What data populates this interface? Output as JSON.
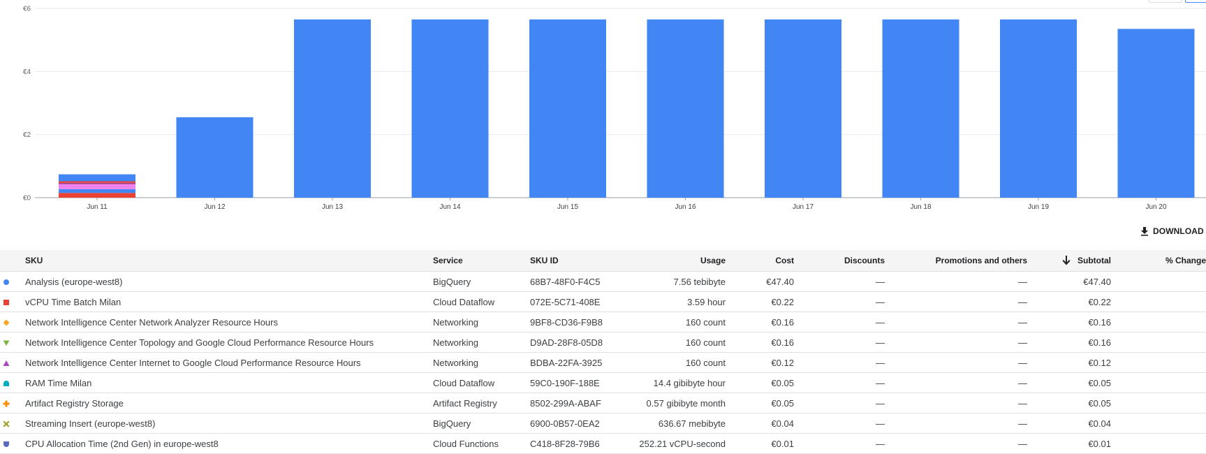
{
  "download_label": "DOWNLOAD",
  "chart_data": {
    "type": "bar",
    "stacked": true,
    "categories": [
      "Jun 11",
      "Jun 12",
      "Jun 13",
      "Jun 14",
      "Jun 15",
      "Jun 16",
      "Jun 17",
      "Jun 18",
      "Jun 19",
      "Jun 20"
    ],
    "y_ticks": [
      "€0",
      "€2",
      "€4",
      "€6"
    ],
    "ylim": [
      0,
      6
    ],
    "grid": true,
    "series": [
      {
        "color": "#ea4335",
        "values": [
          0.15,
          0,
          0,
          0,
          0,
          0,
          0,
          0,
          0,
          0
        ]
      },
      {
        "color": "#4285f4",
        "values": [
          0.12,
          0,
          0,
          0,
          0,
          0,
          0,
          0,
          0,
          0
        ]
      },
      {
        "color": "#ee82ee",
        "values": [
          0.16,
          0,
          0,
          0,
          0,
          0,
          0,
          0,
          0,
          0
        ]
      },
      {
        "color": "#9e3a8e",
        "values": [
          0.04,
          0,
          0,
          0,
          0,
          0,
          0,
          0,
          0,
          0
        ]
      },
      {
        "color": "#ea4335",
        "values": [
          0.05,
          0,
          0,
          0,
          0,
          0,
          0,
          0,
          0,
          0
        ]
      },
      {
        "color": "#4285f4",
        "values": [
          0.22,
          2.55,
          5.65,
          5.65,
          5.65,
          5.65,
          5.65,
          5.65,
          5.65,
          5.35
        ]
      }
    ]
  },
  "table": {
    "headers": {
      "sku": "SKU",
      "service": "Service",
      "sku_id": "SKU ID",
      "usage": "Usage",
      "cost": "Cost",
      "discounts": "Discounts",
      "promotions": "Promotions and others",
      "subtotal": "Subtotal",
      "change": "% Change"
    },
    "rows": [
      {
        "marker": "circle",
        "color": "#4285f4",
        "sku": "Analysis (europe-west8)",
        "service": "BigQuery",
        "sku_id": "68B7-48F0-F4C5",
        "usage": "7.56 tebibyte",
        "cost": "€47.40",
        "discounts": "—",
        "promotions": "—",
        "subtotal": "€47.40"
      },
      {
        "marker": "square",
        "color": "#ea4335",
        "sku": "vCPU Time Batch Milan",
        "service": "Cloud Dataflow",
        "sku_id": "072E-5C71-408E",
        "usage": "3.59 hour",
        "cost": "€0.22",
        "discounts": "—",
        "promotions": "—",
        "subtotal": "€0.22"
      },
      {
        "marker": "diamond",
        "color": "#f9a825",
        "sku": "Network Intelligence Center Network Analyzer Resource Hours",
        "service": "Networking",
        "sku_id": "9BF8-CD36-F9B8",
        "usage": "160 count",
        "cost": "€0.16",
        "discounts": "—",
        "promotions": "—",
        "subtotal": "€0.16"
      },
      {
        "marker": "triangle-down",
        "color": "#7cb342",
        "sku": "Network Intelligence Center Topology and Google Cloud Performance Resource Hours",
        "service": "Networking",
        "sku_id": "D9AD-28F8-05D8",
        "usage": "160 count",
        "cost": "€0.16",
        "discounts": "—",
        "promotions": "—",
        "subtotal": "€0.16"
      },
      {
        "marker": "triangle-up",
        "color": "#ab47bc",
        "sku": "Network Intelligence Center Internet to Google Cloud Performance Resource Hours",
        "service": "Networking",
        "sku_id": "BDBA-22FA-3925",
        "usage": "160 count",
        "cost": "€0.12",
        "discounts": "—",
        "promotions": "—",
        "subtotal": "€0.12"
      },
      {
        "marker": "dome",
        "color": "#00acc1",
        "sku": "RAM Time Milan",
        "service": "Cloud Dataflow",
        "sku_id": "59C0-190F-188E",
        "usage": "14.4 gibibyte hour",
        "cost": "€0.05",
        "discounts": "—",
        "promotions": "—",
        "subtotal": "€0.05"
      },
      {
        "marker": "plus",
        "color": "#fb8c00",
        "sku": "Artifact Registry Storage",
        "service": "Artifact Registry",
        "sku_id": "8502-299A-ABAF",
        "usage": "0.57 gibibyte month",
        "cost": "€0.05",
        "discounts": "—",
        "promotions": "—",
        "subtotal": "€0.05"
      },
      {
        "marker": "cross",
        "color": "#9e9d24",
        "sku": "Streaming Insert (europe-west8)",
        "service": "BigQuery",
        "sku_id": "6900-0B57-0EA2",
        "usage": "636.67 mebibyte",
        "cost": "€0.04",
        "discounts": "—",
        "promotions": "—",
        "subtotal": "€0.04"
      },
      {
        "marker": "shield",
        "color": "#5c6bc0",
        "sku": "CPU Allocation Time (2nd Gen) in europe-west8",
        "service": "Cloud Functions",
        "sku_id": "C418-8F28-79B6",
        "usage": "252.21 vCPU-second",
        "cost": "€0.01",
        "discounts": "—",
        "promotions": "—",
        "subtotal": "€0.01"
      }
    ]
  }
}
